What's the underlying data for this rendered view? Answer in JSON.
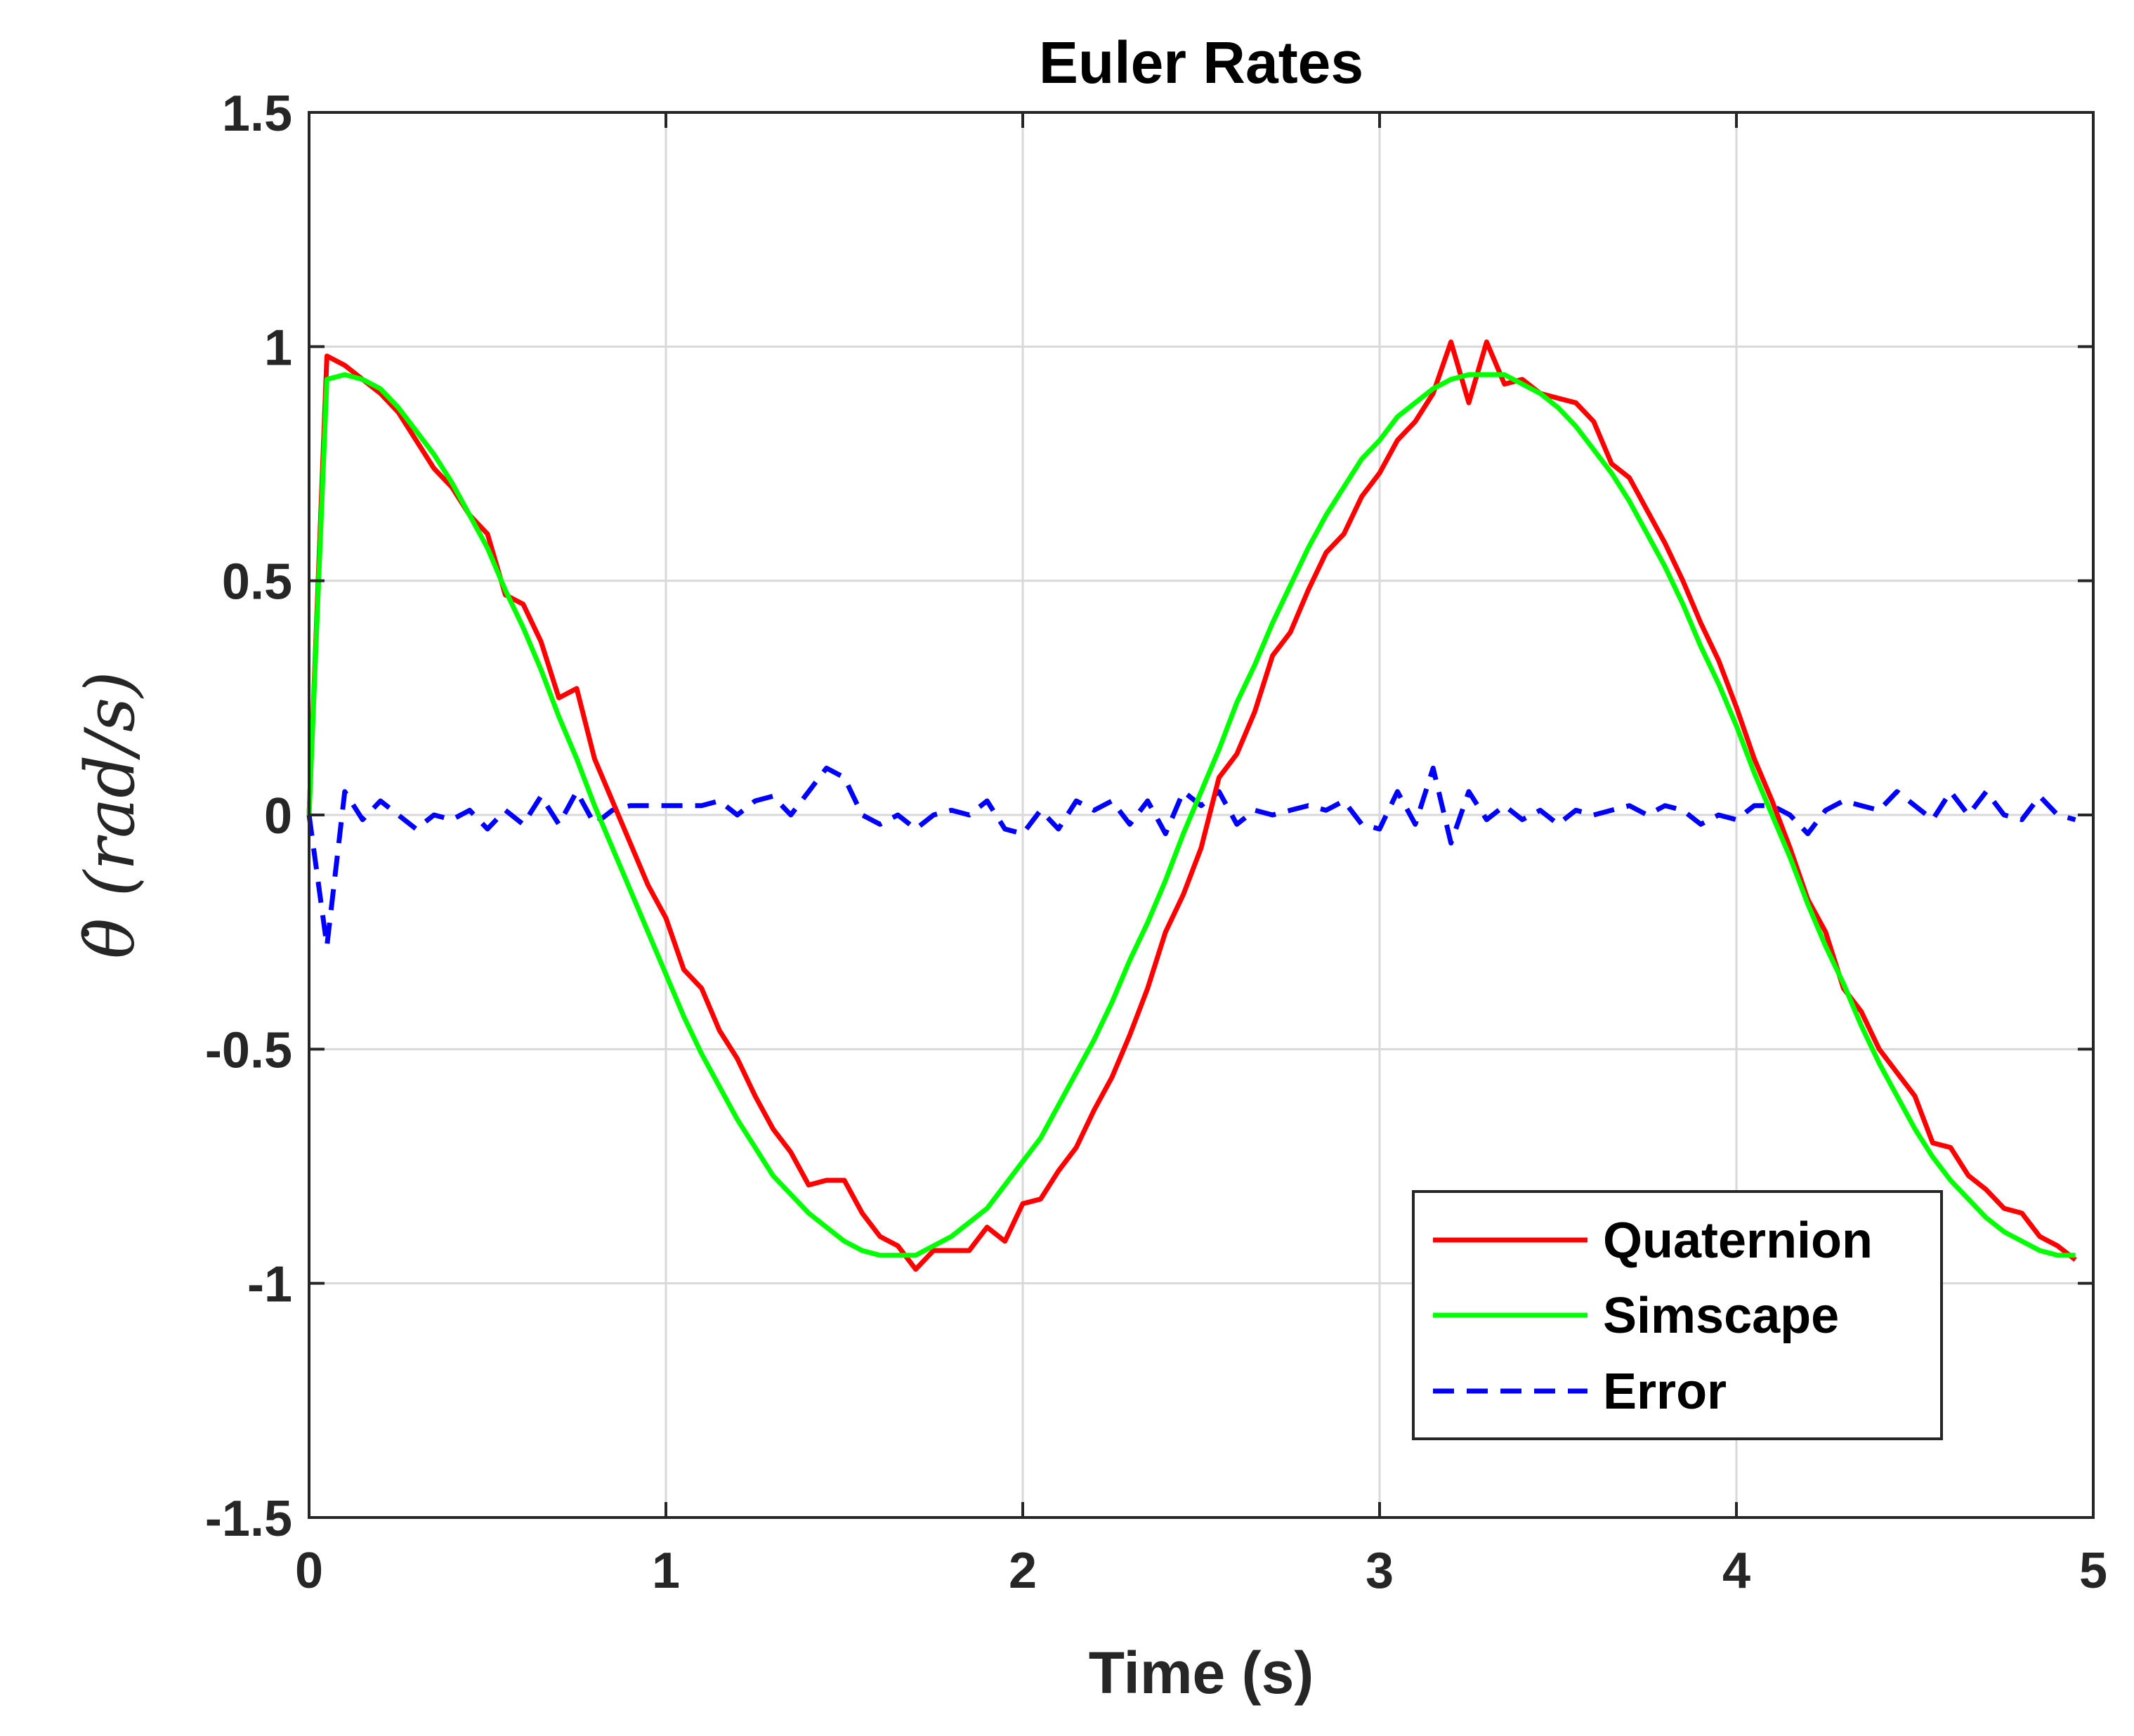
{
  "chart_data": {
    "type": "line",
    "title": "Euler Rates",
    "xlabel": "Time (s)",
    "ylabel": "θ̇ (rad/s)",
    "xlim": [
      0,
      5
    ],
    "ylim": [
      -1.5,
      1.5
    ],
    "grid": true,
    "legend_position": "bottom-right",
    "x_ticks": [
      0,
      1,
      2,
      3,
      4,
      5
    ],
    "x_tick_labels": [
      "0",
      "1",
      "2",
      "3",
      "4",
      "5"
    ],
    "y_ticks": [
      1.5,
      1,
      0.5,
      0,
      -0.5,
      -1,
      -1.5
    ],
    "y_tick_labels": [
      "1.5",
      "1",
      "0.5",
      "0",
      "-0.5",
      "-1",
      "-1.5"
    ],
    "x": [
      0,
      0.05,
      0.1,
      0.15,
      0.2,
      0.25,
      0.3,
      0.35,
      0.4,
      0.45,
      0.5,
      0.55,
      0.6,
      0.65,
      0.7,
      0.75,
      0.8,
      0.85,
      0.9,
      0.95,
      1.0,
      1.05,
      1.1,
      1.15,
      1.2,
      1.25,
      1.3,
      1.35,
      1.4,
      1.45,
      1.5,
      1.55,
      1.6,
      1.65,
      1.7,
      1.75,
      1.8,
      1.85,
      1.9,
      1.95,
      2.0,
      2.05,
      2.1,
      2.15,
      2.2,
      2.25,
      2.3,
      2.35,
      2.4,
      2.45,
      2.5,
      2.55,
      2.6,
      2.65,
      2.7,
      2.75,
      2.8,
      2.85,
      2.9,
      2.95,
      3.0,
      3.05,
      3.1,
      3.15,
      3.2,
      3.25,
      3.3,
      3.35,
      3.4,
      3.45,
      3.5,
      3.55,
      3.6,
      3.65,
      3.7,
      3.75,
      3.8,
      3.85,
      3.9,
      3.95,
      4.0,
      4.05,
      4.1,
      4.15,
      4.2,
      4.25,
      4.3,
      4.35,
      4.4,
      4.45,
      4.5,
      4.55,
      4.6,
      4.65,
      4.7,
      4.75,
      4.8,
      4.85,
      4.9,
      4.95
    ],
    "series": [
      {
        "name": "Quaternion",
        "color": "#ff0000",
        "style": "solid",
        "values": [
          0.0,
          0.98,
          0.96,
          0.93,
          0.9,
          0.86,
          0.8,
          0.74,
          0.7,
          0.64,
          0.6,
          0.47,
          0.45,
          0.37,
          0.25,
          0.27,
          0.12,
          0.03,
          -0.06,
          -0.15,
          -0.22,
          -0.33,
          -0.37,
          -0.46,
          -0.52,
          -0.6,
          -0.67,
          -0.72,
          -0.79,
          -0.78,
          -0.78,
          -0.85,
          -0.9,
          -0.92,
          -0.97,
          -0.93,
          -0.93,
          -0.93,
          -0.88,
          -0.91,
          -0.83,
          -0.82,
          -0.76,
          -0.71,
          -0.63,
          -0.56,
          -0.47,
          -0.37,
          -0.25,
          -0.17,
          -0.07,
          0.08,
          0.13,
          0.22,
          0.34,
          0.39,
          0.48,
          0.56,
          0.6,
          0.68,
          0.73,
          0.8,
          0.84,
          0.9,
          1.01,
          0.88,
          1.01,
          0.92,
          0.93,
          0.9,
          0.89,
          0.88,
          0.84,
          0.75,
          0.72,
          0.65,
          0.58,
          0.5,
          0.41,
          0.33,
          0.23,
          0.12,
          0.03,
          -0.07,
          -0.18,
          -0.25,
          -0.37,
          -0.42,
          -0.5,
          -0.55,
          -0.6,
          -0.7,
          -0.71,
          -0.77,
          -0.8,
          -0.84,
          -0.85,
          -0.9,
          -0.92,
          -0.95
        ]
      },
      {
        "name": "Simscape",
        "color": "#00ff00",
        "style": "solid",
        "values": [
          0.0,
          0.93,
          0.94,
          0.93,
          0.91,
          0.87,
          0.82,
          0.77,
          0.71,
          0.64,
          0.57,
          0.48,
          0.4,
          0.31,
          0.21,
          0.12,
          0.02,
          -0.07,
          -0.16,
          -0.25,
          -0.34,
          -0.43,
          -0.51,
          -0.58,
          -0.65,
          -0.71,
          -0.77,
          -0.81,
          -0.85,
          -0.88,
          -0.91,
          -0.93,
          -0.94,
          -0.94,
          -0.94,
          -0.92,
          -0.9,
          -0.87,
          -0.84,
          -0.79,
          -0.74,
          -0.69,
          -0.62,
          -0.55,
          -0.48,
          -0.4,
          -0.31,
          -0.23,
          -0.14,
          -0.04,
          0.05,
          0.14,
          0.24,
          0.32,
          0.41,
          0.49,
          0.57,
          0.64,
          0.7,
          0.76,
          0.8,
          0.85,
          0.88,
          0.91,
          0.93,
          0.94,
          0.94,
          0.94,
          0.92,
          0.9,
          0.87,
          0.83,
          0.78,
          0.73,
          0.67,
          0.6,
          0.53,
          0.45,
          0.36,
          0.28,
          0.19,
          0.09,
          0.0,
          -0.09,
          -0.19,
          -0.28,
          -0.36,
          -0.45,
          -0.53,
          -0.6,
          -0.67,
          -0.73,
          -0.78,
          -0.82,
          -0.86,
          -0.89,
          -0.91,
          -0.93,
          -0.94,
          -0.94
        ]
      },
      {
        "name": "Error",
        "color": "#0000ff",
        "style": "dashed",
        "values": [
          0.0,
          -0.28,
          0.05,
          -0.01,
          0.03,
          0.0,
          -0.03,
          0.0,
          -0.01,
          0.01,
          -0.03,
          0.01,
          -0.02,
          0.04,
          -0.02,
          0.05,
          -0.02,
          0.01,
          0.02,
          0.02,
          0.02,
          0.02,
          0.02,
          0.03,
          0.0,
          0.03,
          0.04,
          0.0,
          0.05,
          0.1,
          0.08,
          0.0,
          -0.02,
          0.0,
          -0.03,
          0.0,
          0.01,
          0.0,
          0.03,
          -0.03,
          -0.04,
          0.01,
          -0.03,
          0.03,
          0.01,
          0.03,
          -0.02,
          0.03,
          -0.04,
          0.05,
          0.02,
          0.05,
          -0.02,
          0.01,
          0.0,
          0.01,
          0.02,
          0.01,
          0.03,
          -0.02,
          -0.03,
          0.05,
          -0.02,
          0.1,
          -0.06,
          0.05,
          -0.01,
          0.02,
          -0.01,
          0.01,
          -0.02,
          0.01,
          0.0,
          0.01,
          0.02,
          0.0,
          0.02,
          0.01,
          -0.02,
          0.0,
          -0.01,
          0.02,
          0.02,
          0.0,
          -0.04,
          0.01,
          0.03,
          0.02,
          0.01,
          0.05,
          0.02,
          -0.01,
          0.05,
          0.0,
          0.05,
          0.0,
          -0.01,
          0.04,
          0.0,
          -0.01
        ]
      }
    ]
  }
}
